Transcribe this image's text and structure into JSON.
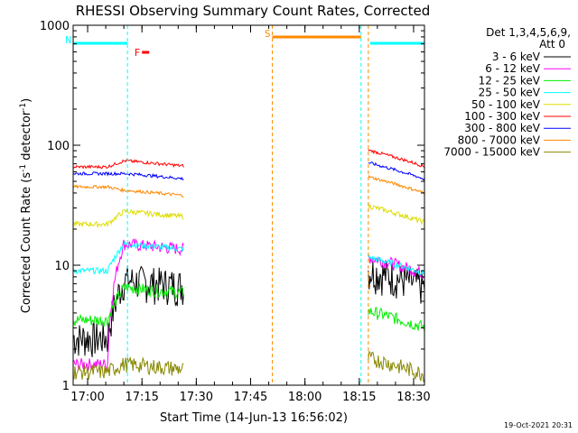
{
  "chart_data": {
    "type": "line",
    "title": "RHESSI Observing Summary Count Rates, Corrected",
    "xlabel": "Start Time (14-Jun-13 16:56:02)",
    "ylabel_main": "Corrected Count Rate (s",
    "ylabel_sup1": "-1",
    "ylabel_mid": " detector",
    "ylabel_sup2": "-1",
    "ylabel_end": ")",
    "yscale": "log",
    "ylim": [
      1,
      1000
    ],
    "x_ticks": [
      "17:00",
      "17:15",
      "17:30",
      "17:45",
      "18:00",
      "18:15",
      "18:30"
    ],
    "x_tick_minutes": [
      4,
      19,
      34,
      49,
      64,
      79,
      94
    ],
    "xlim_minutes": [
      0,
      97
    ],
    "y_ticks": [
      "1",
      "10",
      "100",
      "1000"
    ],
    "y_tick_values": [
      1,
      10,
      100,
      1000
    ],
    "legend_header": [
      "Det 1,3,4,5,6,9,",
      "Att 0"
    ],
    "legend_position": "right",
    "series": [
      {
        "name": "3 - 6 keV",
        "color": "#000000"
      },
      {
        "name": "6 - 12 keV",
        "color": "#ff00ff"
      },
      {
        "name": "12 - 25 keV",
        "color": "#00ee00"
      },
      {
        "name": "25 - 50 keV",
        "color": "#00ffff"
      },
      {
        "name": "50 - 100 keV",
        "color": "#dddd00"
      },
      {
        "name": "100 - 300 keV",
        "color": "#ff0000"
      },
      {
        "name": "300 - 800 keV",
        "color": "#0000ff"
      },
      {
        "name": "800 - 7000 keV",
        "color": "#ff8800"
      },
      {
        "name": "7000 - 15000 keV",
        "color": "#888800"
      }
    ],
    "segments": [
      {
        "start_min": 0,
        "end_min": 30.5
      },
      {
        "start_min": 81.5,
        "end_min": 97
      }
    ],
    "flags": [
      {
        "label": "N",
        "color": "#00ffff",
        "start_min": 0,
        "end_min": 15
      },
      {
        "label": "F",
        "color": "#ff0000",
        "start_min": 19,
        "end_min": 21
      },
      {
        "label": "S",
        "color": "#ff8800",
        "start_min": 55,
        "end_min": 79.5
      },
      {
        "label": "",
        "color": "#00ffff",
        "start_min": 82,
        "end_min": 97
      }
    ],
    "annotations": {
      "footer": "19-Oct-2021 20:31"
    }
  }
}
